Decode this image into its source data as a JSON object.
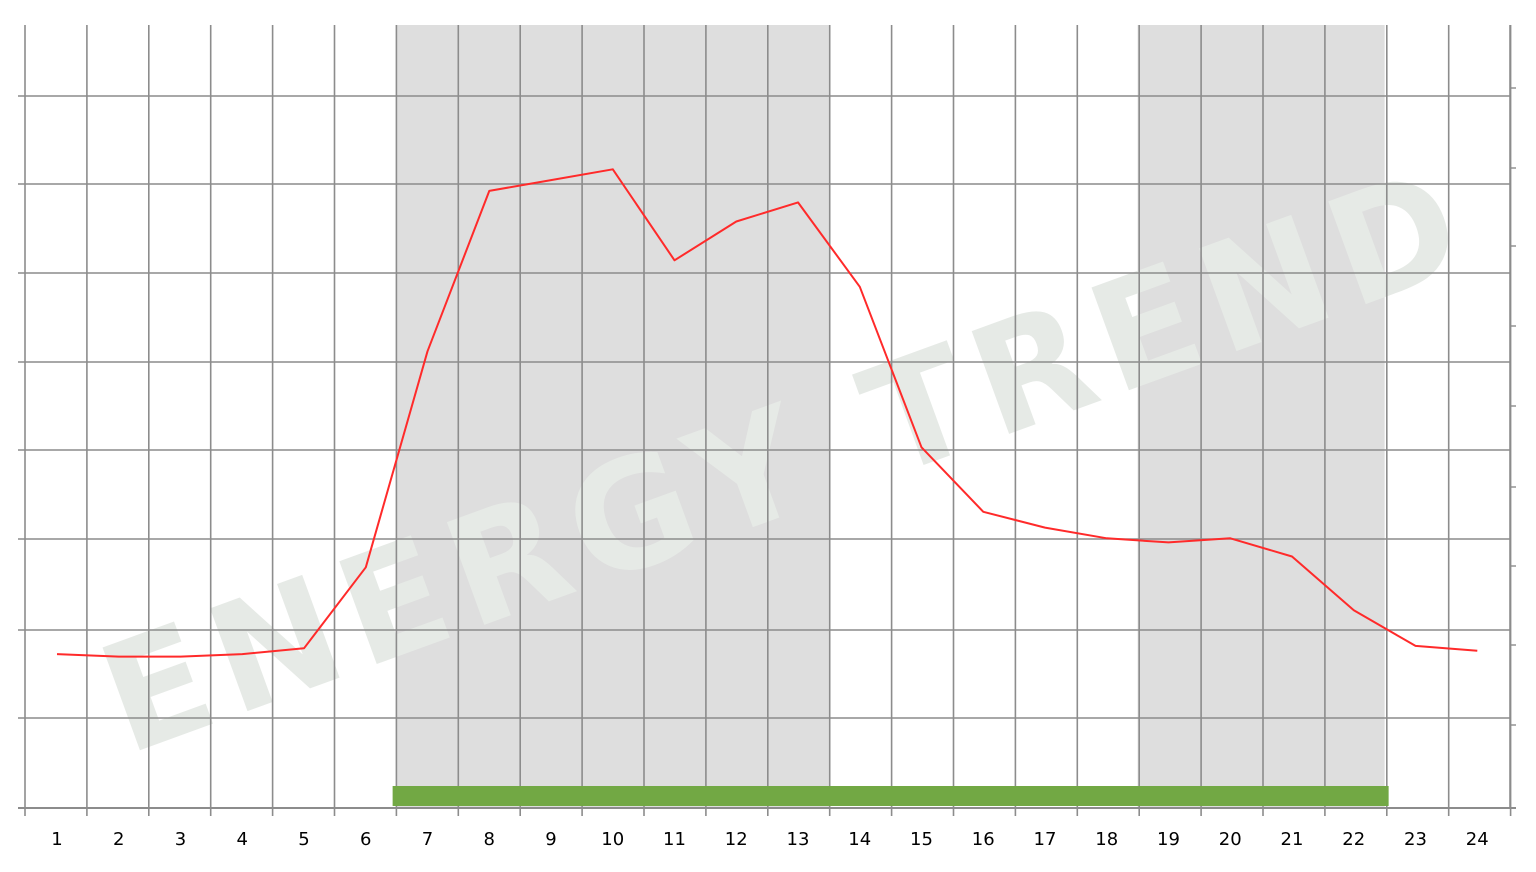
{
  "chart_data": {
    "type": "line",
    "title": "",
    "xlabel": "",
    "ylabel": "",
    "categories": [
      "1",
      "2",
      "3",
      "4",
      "5",
      "6",
      "7",
      "8",
      "9",
      "10",
      "11",
      "12",
      "13",
      "14",
      "15",
      "16",
      "17",
      "18",
      "19",
      "20",
      "21",
      "22",
      "23",
      "24"
    ],
    "series": [
      {
        "values": [
          18.6,
          18.3,
          18.3,
          18.6,
          19.3,
          29.1,
          55.2,
          74.6,
          75.9,
          77.2,
          66.2,
          70.9,
          73.2,
          63.0,
          43.6,
          35.8,
          33.9,
          32.6,
          32.1,
          32.6,
          30.4,
          23.9,
          19.6,
          19.0
        ],
        "color": "#ff2a2a"
      }
    ],
    "ylim": [
      0,
      88
    ],
    "grid": true,
    "shaded_ranges": [
      {
        "from": "7",
        "to": "13",
        "color": "#dedede"
      },
      {
        "from": "19",
        "to": "22",
        "color": "#dedede"
      }
    ],
    "bottom_band": {
      "from": "7",
      "to": "22",
      "color": "#72a844"
    },
    "watermark": {
      "text": "ENERGY TREND",
      "color": "#e6eae6"
    }
  }
}
